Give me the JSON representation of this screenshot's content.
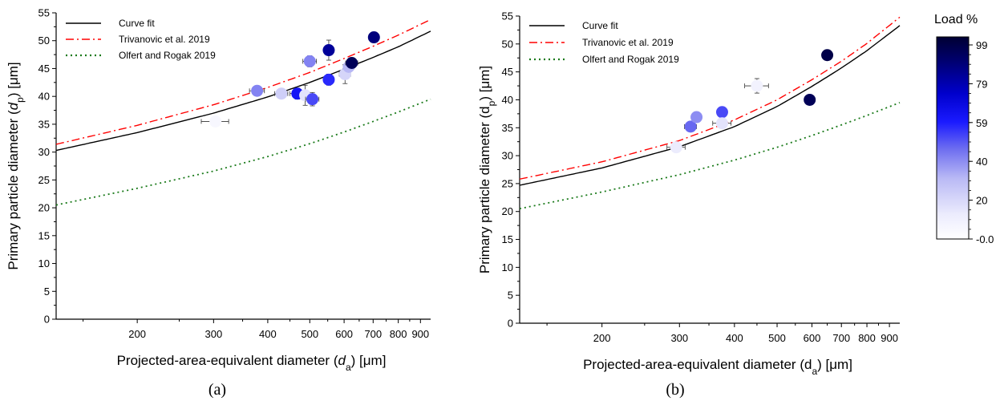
{
  "chart_data": [
    {
      "type": "scatter",
      "caption": "(a)",
      "xlabel": {
        "pre": "Projected-area-equivalent diameter (",
        "sym": "d",
        "sub": "a",
        "post": ") [μm]",
        "italic": true
      },
      "ylabel": {
        "pre": "Primary particle diameter (",
        "sym": "d",
        "sub": "p",
        "post": ") [μm]",
        "italic": true
      },
      "xscale": "log",
      "xlim": [
        130,
        950
      ],
      "ylim": [
        0,
        55
      ],
      "xticks": [
        200,
        300,
        400,
        500,
        600,
        700,
        800,
        900
      ],
      "yticks": [
        0,
        5,
        10,
        15,
        20,
        25,
        30,
        35,
        40,
        45,
        50,
        55
      ],
      "grid": false,
      "legend_position": "top-left",
      "series": [
        {
          "name": "Curve fit",
          "kind": "line",
          "style": "solid",
          "color": "#000000",
          "x": [
            130,
            200,
            300,
            400,
            500,
            600,
            700,
            800,
            950
          ],
          "y": [
            30.3,
            33.5,
            37.0,
            39.9,
            42.5,
            44.9,
            47.0,
            48.9,
            51.7
          ]
        },
        {
          "name": "Trivanovic et al. 2019",
          "kind": "line",
          "style": "dashdot",
          "color": "#ff0000",
          "x": [
            130,
            200,
            300,
            400,
            500,
            600,
            700,
            800,
            950
          ],
          "y": [
            31.4,
            34.8,
            38.5,
            41.6,
            44.3,
            46.8,
            49.0,
            51.0,
            53.8
          ]
        },
        {
          "name": "Olfert and Rogak 2019",
          "kind": "line",
          "style": "dotted",
          "color": "#1a7a1a",
          "x": [
            130,
            200,
            300,
            400,
            500,
            600,
            700,
            800,
            950
          ],
          "y": [
            20.5,
            23.5,
            26.6,
            29.2,
            31.5,
            33.6,
            35.5,
            37.2,
            39.5
          ]
        }
      ],
      "points": [
        {
          "x": 303,
          "y": 35.5,
          "load": 5,
          "xerr": 22,
          "yerr": 0.6
        },
        {
          "x": 378,
          "y": 41.0,
          "load": 40,
          "xerr": 15,
          "yerr": 0.6
        },
        {
          "x": 430,
          "y": 40.5,
          "load": 22,
          "xerr": 15,
          "yerr": 0.5
        },
        {
          "x": 468,
          "y": 40.5,
          "load": 60,
          "xerr": 18,
          "yerr": 1.0
        },
        {
          "x": 488,
          "y": 40.2,
          "load": 15,
          "xerr": 0,
          "yerr": 1.8
        },
        {
          "x": 500,
          "y": 46.3,
          "load": 40,
          "xerr": 18,
          "yerr": 1.0
        },
        {
          "x": 507,
          "y": 39.5,
          "load": 50,
          "xerr": 18,
          "yerr": 1.2
        },
        {
          "x": 553,
          "y": 48.3,
          "load": 80,
          "xerr": 0,
          "yerr": 1.8
        },
        {
          "x": 553,
          "y": 43.0,
          "load": 55,
          "xerr": 0,
          "yerr": 1.0
        },
        {
          "x": 603,
          "y": 44.0,
          "load": 20,
          "xerr": 18,
          "yerr": 1.7
        },
        {
          "x": 615,
          "y": 45.3,
          "load": 30,
          "xerr": 18,
          "yerr": 0.8
        },
        {
          "x": 625,
          "y": 46.0,
          "load": 92,
          "xerr": 20,
          "yerr": 0.8
        },
        {
          "x": 703,
          "y": 50.6,
          "load": 85,
          "xerr": 18,
          "yerr": 0.8
        }
      ]
    },
    {
      "type": "scatter",
      "caption": "(b)",
      "xlabel": {
        "pre": "Projected-area-equivalent diameter (",
        "sym": "d",
        "sub": "a",
        "post": ") [μm]",
        "italic": false
      },
      "ylabel": {
        "pre": "Primary particle diameter (",
        "sym": "d",
        "sub": "p",
        "post": ") [μm]",
        "italic": false
      },
      "xscale": "log",
      "xlim": [
        130,
        950
      ],
      "ylim": [
        0,
        55
      ],
      "xticks": [
        200,
        300,
        400,
        500,
        600,
        700,
        800,
        900
      ],
      "yticks": [
        0,
        5,
        10,
        15,
        20,
        25,
        30,
        35,
        40,
        45,
        50,
        55
      ],
      "grid": false,
      "legend_position": "top-left",
      "series": [
        {
          "name": "Curve fit",
          "kind": "line",
          "style": "solid",
          "color": "#000000",
          "x": [
            130,
            200,
            300,
            400,
            500,
            600,
            700,
            800,
            950
          ],
          "y": [
            24.7,
            27.8,
            31.6,
            35.2,
            38.8,
            42.4,
            45.7,
            48.8,
            53.3
          ]
        },
        {
          "name": "Trivanovic et al. 2019",
          "kind": "line",
          "style": "dashdot",
          "color": "#ff0000",
          "x": [
            130,
            200,
            300,
            400,
            500,
            600,
            700,
            800,
            950
          ],
          "y": [
            25.8,
            28.9,
            32.7,
            36.4,
            40.0,
            43.6,
            46.9,
            50.1,
            54.8
          ]
        },
        {
          "name": "Olfert and Rogak 2019",
          "kind": "line",
          "style": "dotted",
          "color": "#1a7a1a",
          "x": [
            130,
            200,
            300,
            400,
            500,
            600,
            700,
            800,
            950
          ],
          "y": [
            20.5,
            23.5,
            26.6,
            29.2,
            31.5,
            33.6,
            35.5,
            37.2,
            39.5
          ]
        }
      ],
      "points": [
        {
          "x": 295,
          "y": 31.5,
          "load": 12,
          "xerr": 14,
          "yerr": 0.6
        },
        {
          "x": 318,
          "y": 35.2,
          "load": 45,
          "xerr": 10,
          "yerr": 0.6
        },
        {
          "x": 328,
          "y": 36.9,
          "load": 38,
          "xerr": 0,
          "yerr": 0.6
        },
        {
          "x": 375,
          "y": 37.8,
          "load": 50,
          "xerr": 0,
          "yerr": 0.8
        },
        {
          "x": 375,
          "y": 35.8,
          "load": 15,
          "xerr": 18,
          "yerr": 0.8
        },
        {
          "x": 450,
          "y": 42.5,
          "load": 8,
          "xerr": 28,
          "yerr": 1.3
        },
        {
          "x": 593,
          "y": 40.0,
          "load": 92,
          "xerr": 12,
          "yerr": 0.4
        },
        {
          "x": 650,
          "y": 48.0,
          "load": 95,
          "xerr": 0,
          "yerr": 0.5
        }
      ]
    }
  ],
  "colorbar": {
    "title": "Load %",
    "ticks": [
      "-0.0",
      "20",
      "40",
      "59",
      "79",
      "99"
    ],
    "min": 0,
    "max": 99,
    "stops": [
      "#ffffff",
      "#ececfd",
      "#b9b9f5",
      "#6b6bf0",
      "#1a1aff",
      "#0000cc",
      "#000070",
      "#000033"
    ]
  }
}
